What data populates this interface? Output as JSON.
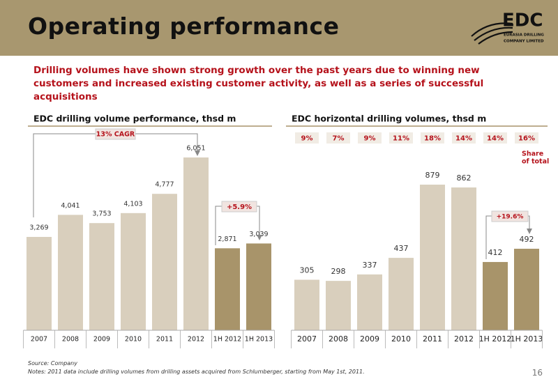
{
  "slide": {
    "title": "Operating performance",
    "lead": "Drilling volumes have shown strong growth over the past years due to winning new customers and increased existing customer activity, as well as a series of successful acquisitions",
    "logo": {
      "name": "EDC",
      "line1": "EURASIA DRILLING",
      "line2": "COMPANY LIMITED"
    },
    "source": "Source: Company",
    "notes": "Notes: 2011 data include drilling volumes from drilling assets acquired from Schlumberger, starting from May 1st, 2011.",
    "page": "16"
  },
  "chart_data": [
    {
      "type": "bar",
      "title": "EDC drilling volume performance, thsd m",
      "categories": [
        "2007",
        "2008",
        "2009",
        "2010",
        "2011",
        "2012",
        "1H 2012",
        "1H 2013"
      ],
      "values": [
        3269,
        4041,
        3753,
        4103,
        4777,
        6051,
        2871,
        3039
      ],
      "value_labels": [
        "3,269",
        "4,041",
        "3,753",
        "4,103",
        "4,777",
        "6,051",
        "2,871",
        "3,039"
      ],
      "colors": [
        "#d9cfbd",
        "#d9cfbd",
        "#d9cfbd",
        "#d9cfbd",
        "#d9cfbd",
        "#d9cfbd",
        "#a8946a",
        "#a8946a"
      ],
      "annotations": [
        "13% CAGR",
        "+5.9%"
      ]
    },
    {
      "type": "bar",
      "title": "EDC horizontal drilling volumes, thsd m",
      "categories": [
        "2007",
        "2008",
        "2009",
        "2010",
        "2011",
        "2012",
        "1H 2012",
        "1H 2013"
      ],
      "values": [
        305,
        298,
        337,
        437,
        879,
        862,
        412,
        492
      ],
      "colors": [
        "#d9cfbd",
        "#d9cfbd",
        "#d9cfbd",
        "#d9cfbd",
        "#d9cfbd",
        "#d9cfbd",
        "#a8946a",
        "#a8946a"
      ],
      "share_labels": [
        "9%",
        "7%",
        "9%",
        "11%",
        "18%",
        "14%",
        "14%",
        "16%"
      ],
      "share_title": [
        "Share",
        "of total"
      ],
      "annotations": [
        "+19.6%"
      ]
    }
  ]
}
